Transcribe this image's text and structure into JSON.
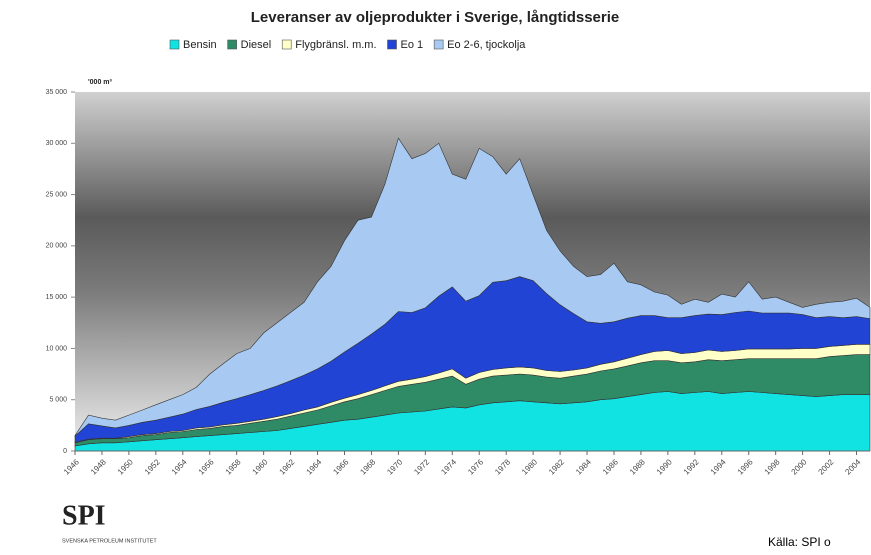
{
  "chart_data": {
    "type": "stacked_area",
    "title": "Leveranser av oljeprodukter i Sverige, långtidsserie",
    "y_label": "'000 m³",
    "x": [
      1946,
      1947,
      1948,
      1949,
      1950,
      1951,
      1952,
      1953,
      1954,
      1955,
      1956,
      1957,
      1958,
      1959,
      1960,
      1961,
      1962,
      1963,
      1964,
      1965,
      1966,
      1967,
      1968,
      1969,
      1970,
      1971,
      1972,
      1973,
      1974,
      1975,
      1976,
      1977,
      1978,
      1979,
      1980,
      1981,
      1982,
      1983,
      1984,
      1985,
      1986,
      1987,
      1988,
      1989,
      1990,
      1991,
      1992,
      1993,
      1994,
      1995,
      1996,
      1997,
      1998,
      1999,
      2000,
      2001,
      2002,
      2003,
      2004,
      2005
    ],
    "series": [
      {
        "name": "Bensin",
        "color": "#11e3e3",
        "values": [
          500,
          700,
          800,
          800,
          900,
          1000,
          1100,
          1200,
          1300,
          1400,
          1500,
          1600,
          1700,
          1800,
          1900,
          2000,
          2200,
          2400,
          2600,
          2800,
          3000,
          3100,
          3300,
          3500,
          3700,
          3800,
          3900,
          4100,
          4300,
          4200,
          4500,
          4700,
          4800,
          4900,
          4800,
          4700,
          4600,
          4700,
          4800,
          5000,
          5100,
          5300,
          5500,
          5700,
          5800,
          5600,
          5700,
          5800,
          5600,
          5700,
          5800,
          5700,
          5600,
          5500,
          5400,
          5300,
          5400,
          5500,
          5500,
          5500
        ]
      },
      {
        "name": "Diesel",
        "color": "#2e8b66",
        "values": [
          300,
          400,
          400,
          400,
          400,
          500,
          500,
          600,
          600,
          700,
          700,
          800,
          800,
          900,
          1000,
          1100,
          1200,
          1300,
          1400,
          1600,
          1800,
          2000,
          2200,
          2400,
          2600,
          2700,
          2800,
          2900,
          3000,
          2300,
          2500,
          2600,
          2600,
          2600,
          2600,
          2500,
          2500,
          2600,
          2700,
          2800,
          2900,
          3000,
          3100,
          3100,
          3000,
          3000,
          3000,
          3100,
          3200,
          3200,
          3200,
          3300,
          3400,
          3500,
          3600,
          3700,
          3800,
          3800,
          3900,
          3900
        ]
      },
      {
        "name": "Flygbränsl. m.m.",
        "color": "#ffffc8",
        "values": [
          50,
          50,
          50,
          50,
          100,
          100,
          100,
          100,
          100,
          150,
          150,
          150,
          200,
          200,
          200,
          250,
          250,
          300,
          300,
          350,
          350,
          400,
          400,
          450,
          500,
          500,
          550,
          600,
          700,
          600,
          650,
          650,
          700,
          700,
          700,
          650,
          650,
          600,
          600,
          650,
          700,
          750,
          800,
          900,
          1000,
          900,
          900,
          950,
          900,
          900,
          950,
          950,
          950,
          950,
          1000,
          1000,
          1000,
          1000,
          1000,
          1000
        ]
      },
      {
        "name": "Eo 1",
        "color": "#2244d4",
        "values": [
          600,
          1500,
          1200,
          1000,
          1100,
          1200,
          1300,
          1400,
          1600,
          1800,
          2000,
          2200,
          2400,
          2600,
          2800,
          3000,
          3200,
          3400,
          3700,
          4000,
          4500,
          5000,
          5500,
          6000,
          6800,
          6500,
          6700,
          7500,
          8000,
          7500,
          7500,
          8500,
          8500,
          8800,
          8500,
          7500,
          6500,
          5500,
          4500,
          4000,
          3900,
          3900,
          3800,
          3500,
          3200,
          3500,
          3600,
          3500,
          3600,
          3700,
          3700,
          3500,
          3500,
          3500,
          3300,
          3000,
          2900,
          2700,
          2700,
          2500
        ]
      },
      {
        "name": "Eo 2-6, tjockolja",
        "color": "#a8caf2",
        "values": [
          50,
          850,
          750,
          750,
          1000,
          1200,
          1500,
          1700,
          1900,
          2150,
          3150,
          3750,
          4400,
          4500,
          5600,
          6150,
          6650,
          7100,
          8500,
          9250,
          10850,
          12000,
          11400,
          13650,
          16900,
          15000,
          15050,
          14900,
          11000,
          11900,
          14350,
          12250,
          10400,
          11500,
          8400,
          6150,
          5250,
          4600,
          4400,
          4750,
          5700,
          3550,
          3000,
          2300,
          2200,
          1300,
          1600,
          1150,
          2000,
          1500,
          2850,
          1350,
          1550,
          1050,
          700,
          1300,
          1400,
          1600,
          1800,
          1100
        ]
      }
    ],
    "xlim": [
      1946,
      2005
    ],
    "xticks": [
      1946,
      1948,
      1950,
      1952,
      1954,
      1956,
      1958,
      1960,
      1962,
      1964,
      1966,
      1968,
      1970,
      1972,
      1974,
      1976,
      1978,
      1980,
      1982,
      1984,
      1986,
      1988,
      1990,
      1992,
      1994,
      1996,
      1998,
      2000,
      2002,
      2004
    ],
    "ylim": [
      0,
      35000
    ],
    "yticks": [
      0,
      {
        "value": 5000,
        "label": "5 000"
      },
      {
        "value": 10000,
        "label": "10 000"
      },
      {
        "value": 15000,
        "label": "15 000"
      },
      {
        "value": 20000,
        "label": "20 000"
      },
      {
        "value": 25000,
        "label": "25 000"
      },
      {
        "value": 30000,
        "label": "30 000"
      },
      {
        "value": 35000,
        "label": "35 000"
      }
    ],
    "legend": "top"
  },
  "logo": {
    "name": "SPI",
    "subtitle": "SVENSKA PETROLEUM INSTITUTET"
  },
  "source": "Källa: SPI o"
}
